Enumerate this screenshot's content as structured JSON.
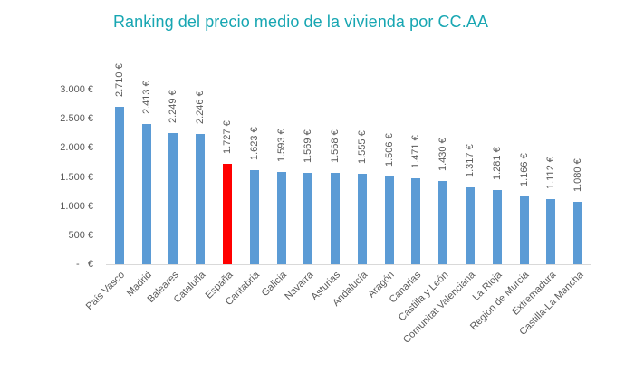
{
  "chart_data": {
    "type": "bar",
    "title": "Ranking del precio medio de la vivienda por CC.AA",
    "xlabel": "",
    "ylabel": "",
    "categories": [
      "País Vasco",
      "Madrid",
      "Baleares",
      "Cataluña",
      "España",
      "Cantabria",
      "Galicia",
      "Navarra",
      "Asturias",
      "Andalucía",
      "Aragón",
      "Canarias",
      "Castilla y León",
      "Comunitat Valenciana",
      "La Rioja",
      "Región de Murcia",
      "Extremadura",
      "Castilla-La Mancha"
    ],
    "values": [
      2710,
      2413,
      2249,
      2246,
      1727,
      1623,
      1593,
      1569,
      1568,
      1555,
      1506,
      1471,
      1430,
      1317,
      1281,
      1166,
      1112,
      1080
    ],
    "value_labels": [
      "2.710 €",
      "2.413 €",
      "2.249 €",
      "2.246 €",
      "1.727 €",
      "1.623 €",
      "1.593 €",
      "1.569 €",
      "1.568 €",
      "1.555 €",
      "1.506 €",
      "1.471 €",
      "1.430 €",
      "1.317 €",
      "1.281 €",
      "1.166 €",
      "1.112 €",
      "1.080 €"
    ],
    "highlight_category": "España",
    "ylim": [
      0,
      3000
    ],
    "yticks": [
      0,
      500,
      1000,
      1500,
      2000,
      2500,
      3000
    ],
    "ytick_labels": [
      "-   €",
      "500 €",
      "1.000 €",
      "1.500 €",
      "2.000 €",
      "2.500 €",
      "3.000 €"
    ],
    "grid": false,
    "legend": null,
    "colors": {
      "bar": "#5b9bd5",
      "highlight": "#ff0000",
      "title": "#17a6b2",
      "text": "#595959",
      "axis": "#d9d9d9"
    }
  }
}
